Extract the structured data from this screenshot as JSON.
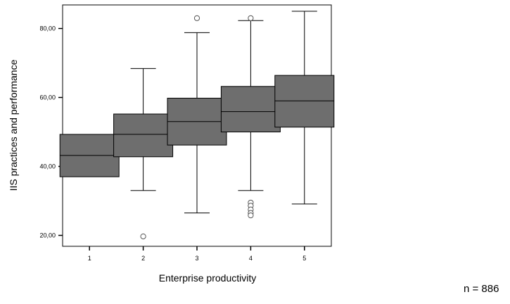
{
  "chart_data": {
    "type": "boxplot",
    "xlabel": "Enterprise productivity",
    "ylabel": "IIS practices and performance",
    "categories": [
      "1",
      "2",
      "3",
      "4",
      "5"
    ],
    "ylim": [
      17,
      88
    ],
    "yticks": [
      20,
      40,
      60,
      80
    ],
    "ytick_labels": [
      "20,00",
      "40,00",
      "60,00",
      "80,00"
    ],
    "boxes": [
      {
        "category": "1",
        "min": 37.0,
        "q1": 37.0,
        "median": 43.2,
        "q3": 49.3,
        "max": 49.3,
        "outliers": []
      },
      {
        "category": "2",
        "min": 33.0,
        "q1": 42.8,
        "median": 49.3,
        "q3": 55.2,
        "max": 68.4,
        "outliers": [
          19.7
        ]
      },
      {
        "category": "3",
        "min": 26.5,
        "q1": 46.2,
        "median": 53.0,
        "q3": 59.8,
        "max": 78.8,
        "outliers": [
          83.0
        ]
      },
      {
        "category": "4",
        "min": 33.0,
        "q1": 50.0,
        "median": 55.9,
        "q3": 63.2,
        "max": 82.3,
        "outliers": [
          83.0,
          29.5,
          28.6,
          27.5,
          26.5,
          25.8
        ]
      },
      {
        "category": "5",
        "min": 29.1,
        "q1": 51.4,
        "median": 59.0,
        "q3": 66.4,
        "max": 85.0,
        "outliers": []
      }
    ],
    "box_fill": "#6e6e6e",
    "grid": false,
    "legend": "none"
  },
  "annotation": "n = 886"
}
